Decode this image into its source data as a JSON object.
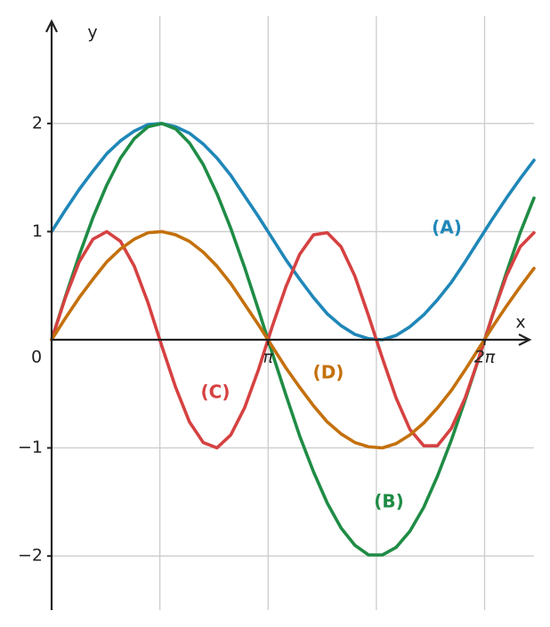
{
  "chart_data": {
    "type": "line",
    "x_label": "x",
    "y_label": "y",
    "x": [
      0,
      0.2,
      0.4,
      0.6,
      0.8,
      1.0,
      1.2,
      1.4,
      1.6,
      1.8,
      2.0,
      2.2,
      2.4,
      2.6,
      2.8,
      3.0,
      3.2,
      3.4,
      3.6,
      3.8,
      4.0,
      4.2,
      4.4,
      4.6,
      4.8,
      5.0,
      5.2,
      5.4,
      5.6,
      5.8,
      6.0,
      6.2,
      6.4,
      6.6,
      6.8,
      7.0
    ],
    "series": [
      {
        "name": "(A)",
        "color": "#1f87b8",
        "values": [
          1,
          1.2,
          1.39,
          1.56,
          1.72,
          1.84,
          1.93,
          1.99,
          2.0,
          1.97,
          1.91,
          1.81,
          1.68,
          1.52,
          1.33,
          1.14,
          0.94,
          0.74,
          0.56,
          0.39,
          0.24,
          0.13,
          0.05,
          0.01,
          0.0,
          0.04,
          0.12,
          0.23,
          0.37,
          0.53,
          0.72,
          0.92,
          1.12,
          1.31,
          1.49,
          1.66
        ]
      },
      {
        "name": "(B)",
        "color": "#1f8c45",
        "values": [
          0,
          0.4,
          0.78,
          1.13,
          1.43,
          1.68,
          1.86,
          1.97,
          2.0,
          1.95,
          1.82,
          1.62,
          1.35,
          1.03,
          0.67,
          0.28,
          -0.12,
          -0.51,
          -0.89,
          -1.22,
          -1.51,
          -1.74,
          -1.9,
          -1.99,
          -1.99,
          -1.92,
          -1.77,
          -1.55,
          -1.26,
          -0.93,
          -0.56,
          -0.17,
          0.23,
          0.62,
          0.99,
          1.31
        ]
      },
      {
        "name": "(C)",
        "color": "#d64141",
        "values": [
          0,
          0.39,
          0.72,
          0.93,
          1.0,
          0.91,
          0.68,
          0.34,
          -0.06,
          -0.44,
          -0.76,
          -0.95,
          -1.0,
          -0.88,
          -0.63,
          -0.28,
          0.12,
          0.49,
          0.79,
          0.97,
          0.99,
          0.86,
          0.59,
          0.22,
          -0.17,
          -0.54,
          -0.83,
          -0.98,
          -0.98,
          -0.82,
          -0.54,
          -0.17,
          0.23,
          0.59,
          0.86,
          0.99
        ]
      },
      {
        "name": "(D)",
        "color": "#c4700c",
        "values": [
          0,
          0.2,
          0.39,
          0.56,
          0.72,
          0.84,
          0.93,
          0.99,
          1.0,
          0.97,
          0.91,
          0.81,
          0.68,
          0.52,
          0.33,
          0.14,
          -0.06,
          -0.26,
          -0.44,
          -0.61,
          -0.76,
          -0.87,
          -0.95,
          -0.99,
          -1.0,
          -0.96,
          -0.88,
          -0.77,
          -0.63,
          -0.47,
          -0.28,
          -0.08,
          0.12,
          0.31,
          0.49,
          0.66
        ]
      }
    ],
    "xlim": [
      0,
      7
    ],
    "ylim": [
      -2.5,
      2.95
    ],
    "xticks": [
      {
        "value": 3.1416,
        "label": "π"
      },
      {
        "value": 6.2832,
        "label": "2π"
      }
    ],
    "xgrid": [
      1.5708,
      3.1416,
      4.7124,
      6.2832
    ],
    "yticks": [
      {
        "value": -2,
        "label": "−2"
      },
      {
        "value": -1,
        "label": "−1"
      },
      0,
      1,
      2
    ],
    "grid": true
  }
}
